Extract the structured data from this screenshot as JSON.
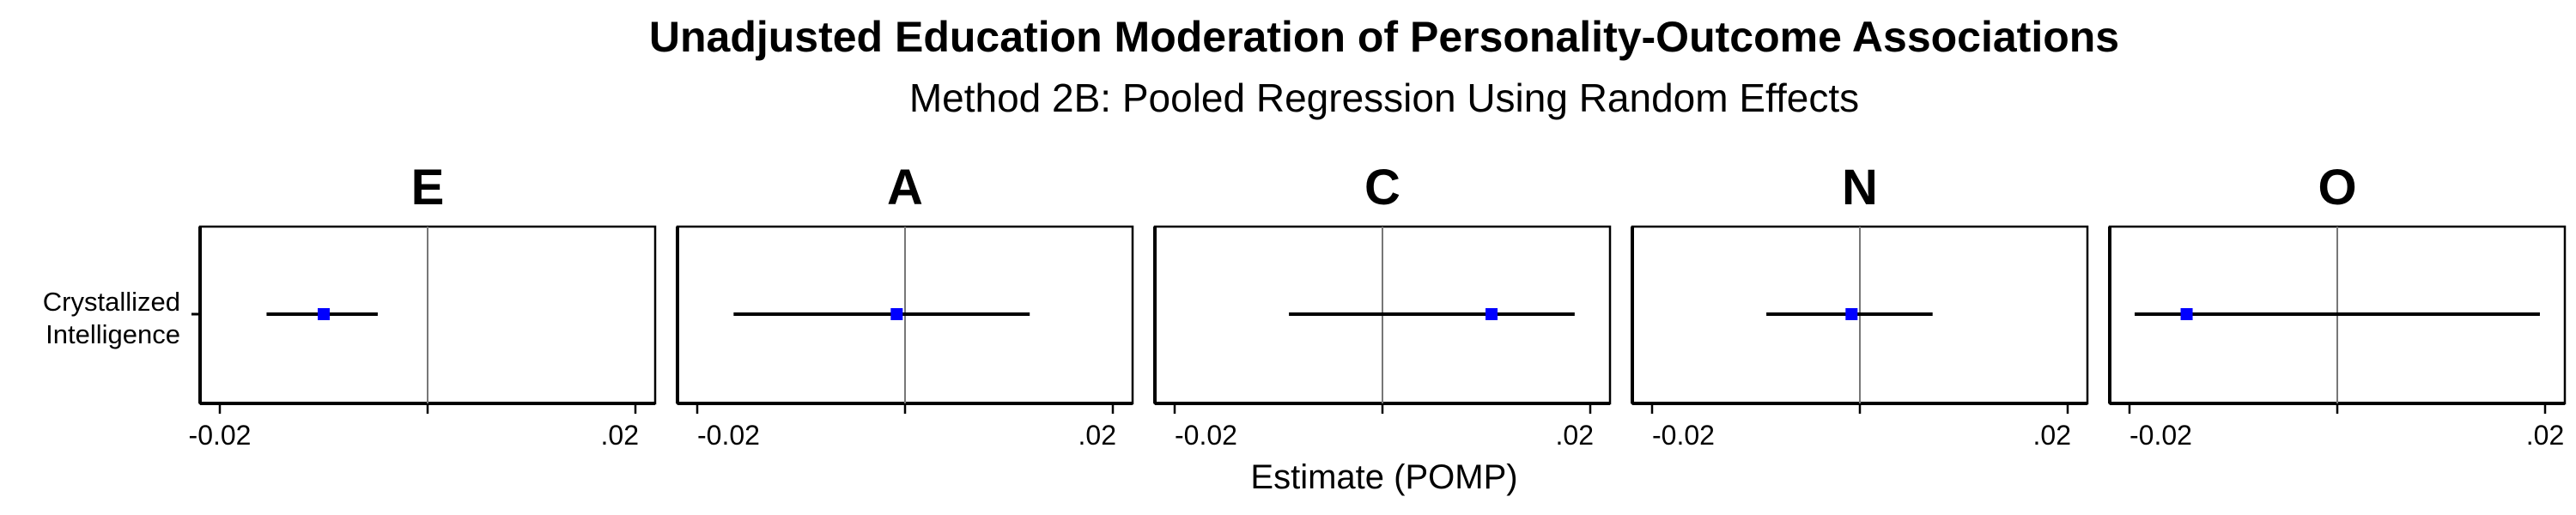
{
  "chart_data": {
    "type": "scatter",
    "title": "Unadjusted Education Moderation of Personality-Outcome Associations",
    "subtitle": "Method 2B: Pooled Regression Using Random Effects",
    "xlabel": "Estimate (POMP)",
    "ylabel": "",
    "y_categories": [
      "Crystallized Intelligence"
    ],
    "y_category_lines": [
      "Crystallized",
      "Intelligence"
    ],
    "xlim": [
      -0.02,
      0.02
    ],
    "x_tick_labels": [
      "-0.02",
      ".02"
    ],
    "reference_line_x": 0,
    "point_color": "#0000ff",
    "panels": [
      {
        "label": "E",
        "estimate": -0.01,
        "ci_low": -0.0155,
        "ci_high": -0.0048
      },
      {
        "label": "A",
        "estimate": -0.0008,
        "ci_low": -0.0165,
        "ci_high": 0.012
      },
      {
        "label": "C",
        "estimate": 0.0105,
        "ci_low": -0.009,
        "ci_high": 0.0185
      },
      {
        "label": "N",
        "estimate": -0.0008,
        "ci_low": -0.009,
        "ci_high": 0.007
      },
      {
        "label": "O",
        "estimate": -0.0145,
        "ci_low": -0.0195,
        "ci_high": 0.0195
      }
    ]
  }
}
